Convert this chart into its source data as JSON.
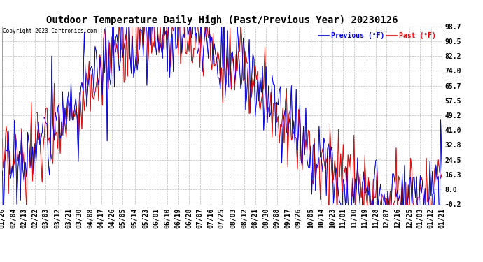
{
  "title": "Outdoor Temperature Daily High (Past/Previous Year) 20230126",
  "copyright": "Copyright 2023 Cartronics.com",
  "legend_previous": "Previous (°F)",
  "legend_past": "Past (°F)",
  "color_previous": "blue",
  "color_past": "red",
  "color_black": "black",
  "yticks": [
    98.7,
    90.5,
    82.2,
    74.0,
    65.7,
    57.5,
    49.2,
    41.0,
    32.8,
    24.5,
    16.3,
    8.0,
    -0.2
  ],
  "ylim": [
    -0.2,
    98.7
  ],
  "background_color": "#ffffff",
  "grid_color": "#bbbbbb",
  "title_fontsize": 10,
  "tick_fontsize": 7,
  "date_labels": [
    "01/26",
    "02/04",
    "02/13",
    "02/22",
    "03/03",
    "03/12",
    "03/21",
    "03/30",
    "04/08",
    "04/17",
    "04/26",
    "05/05",
    "05/14",
    "05/23",
    "06/01",
    "06/10",
    "06/19",
    "06/28",
    "07/07",
    "07/16",
    "07/25",
    "08/03",
    "08/12",
    "08/21",
    "08/30",
    "09/08",
    "09/17",
    "09/26",
    "10/05",
    "10/14",
    "10/23",
    "11/01",
    "11/10",
    "11/19",
    "11/28",
    "12/07",
    "12/16",
    "12/25",
    "01/03",
    "01/12",
    "01/21"
  ],
  "n_days": 366,
  "seasonal_amplitude": 45,
  "seasonal_base": 49,
  "noise_scale": 12,
  "seed_past": 0,
  "seed_previous": 17
}
